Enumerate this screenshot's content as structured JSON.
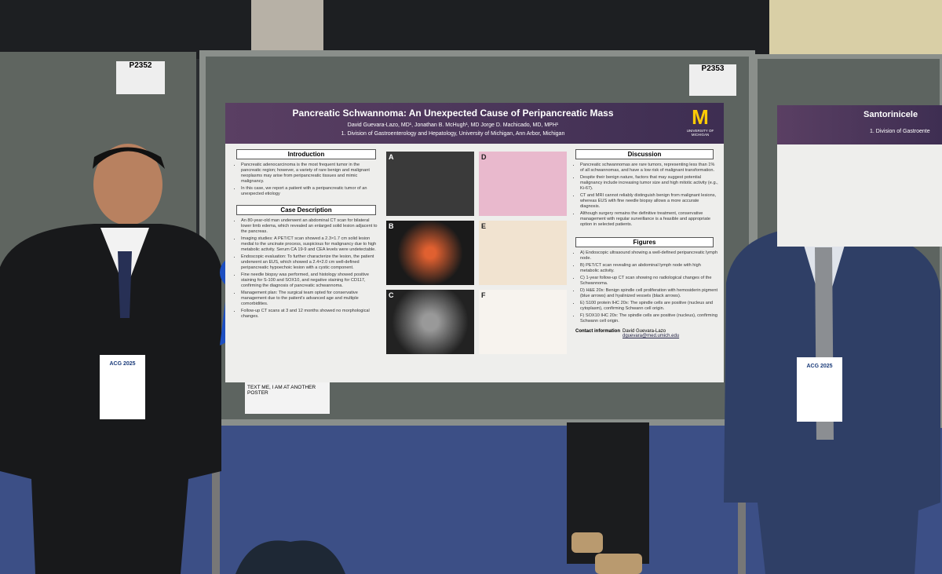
{
  "board_labels": [
    "P2352",
    "P2353"
  ],
  "poster": {
    "title": "Pancreatic Schwannoma: An Unexpected Cause of Peripancreatic Mass",
    "authors": "David Guevara-Lazo, MD¹, Jonathan B. McHugh¹, MD Jorge D. Machicado, MD, MPH¹",
    "affiliation": "1.  Division of Gastroenterology and Hepatology, University of Michigan, Ann Arbor, Michigan",
    "logo": "UNIVERSITY OF MICHIGAN",
    "introduction": {
      "heading": "Introduction",
      "items": [
        "Pancreatic adenocarcinoma is the most frequent tumor in the pancreatic region; however, a variety of rare benign and malignant neoplasms may arise from peripancreatic tissues and mimic malignancy.",
        "In this case, we report a patient with a peripancreatic tumor of an unexpected etiology"
      ]
    },
    "case_description": {
      "heading": "Case Description",
      "items": [
        "An 80-year-old man underwent an abdominal CT scan for bilateral lower limb edema, which revealed an enlarged solid lesion adjacent to the pancreas.",
        "Imaging studies: A PET/CT scan showed a 2.3×1.7 cm solid lesion medial to the uncinate process, suspicious for malignancy due to high metabolic activity. Serum CA 19-9 and CEA levels were undetectable.",
        "Endoscopic evaluation: To further characterize the lesion, the patient underwent an EUS, which showed a 2.4×2.0 cm well-defined peripancreatic hypoechoic lesion with a cystic component.",
        "Fine needle biopsy was performed, and histology showed positive staining for S-100 and SOX10, and negative staining for CD117, confirming the diagnosis of pancreatic schwannoma.",
        "Management plan: The surgical team opted for conservative management due to the patient's advanced age and multiple comorbidities.",
        "Follow-up CT scans at 3 and 12 months showed no morphological changes."
      ]
    },
    "panels": [
      "A",
      "B",
      "C",
      "D",
      "E",
      "F"
    ],
    "discussion": {
      "heading": "Discussion",
      "items": [
        "Pancreatic schwannomas are rare tumors, representing less than 1% of all schwannomas, and have a low risk of malignant transformation.",
        "Despite their benign nature, factors that may suggest potential malignancy include increasing tumor size and high mitotic activity (e.g., Ki-67).",
        "CT and MRI cannot reliably distinguish benign from malignant lesions, whereas EUS with fine needle biopsy allows a more accurate diagnosis.",
        "Although surgery remains the definitive treatment, conservative management with regular surveillance is a feasible and appropriate option in selected patients."
      ]
    },
    "figures": {
      "heading": "Figures",
      "items": [
        "A) Endoscopic ultrasound showing a well-defined peripancreatic lymph node.",
        "B) PET/CT scan revealing an abdominal lymph node with high metabolic activity.",
        "C) 1-year follow-up CT scan showing no radiological changes of the Schwannoma.",
        "D) H&E 20x: Benign spindle cell proliferation with hemosiderin pigment (blue arrows) and hyalinized vessels (black arrows).",
        "E) S100 protein IHC 20x: The spindle cells are positive (nucleus and cytoplasm), confirming Schwann cell origin.",
        "F) SOX10 IHC 20x: The spindle cells are positive (nucleus), confirming Schwann cell origin."
      ]
    },
    "contact": {
      "label": "Contact information",
      "name": "David Guevara-Lazo",
      "email": "dguevara@med.umich.edu"
    }
  },
  "side_poster": {
    "title": "Santorinicele",
    "affiliation": "1.  Division of Gastroente"
  },
  "sign": {
    "title": "TEXT ME, I AM AT ANOTHER POSTER"
  },
  "badges": [
    "ACG 2025",
    "ACG 2025"
  ]
}
